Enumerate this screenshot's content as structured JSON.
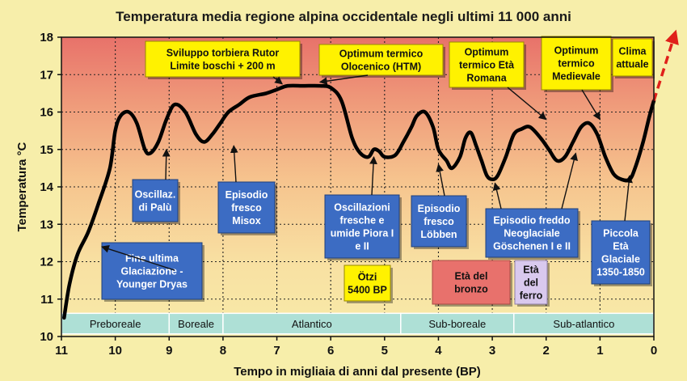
{
  "colors": {
    "background": "#f7eeaa",
    "plot_top": "#e8726a",
    "plot_bottom": "#f8eba8",
    "curve": "#000000",
    "projection": "#e0201a",
    "box_blue": "#3c6cc3",
    "box_yellow": "#fff200",
    "box_bronze": "#e8716c",
    "box_iron": "#d9c9ee",
    "period_band": "#aee0d6"
  },
  "chart_data": {
    "type": "line",
    "title": "Temperatura media regione alpina occidentale negli ultimi 11 000 anni",
    "xlabel": "Tempo in migliaia di anni dal presente (BP)",
    "ylabel": "Temperatura °C",
    "xlim": [
      11,
      0
    ],
    "ylim": [
      10,
      18
    ],
    "x_ticks": [
      11,
      10,
      9,
      8,
      7,
      6,
      5,
      4,
      3,
      2,
      1,
      0
    ],
    "y_ticks": [
      10,
      11,
      12,
      13,
      14,
      15,
      16,
      17,
      18
    ],
    "grid": true,
    "series": [
      {
        "x": [
          10.95,
          10.85,
          10.7,
          10.5,
          10.3,
          10.1,
          10.0,
          9.9,
          9.75,
          9.6,
          9.45,
          9.35,
          9.2,
          9.05,
          8.9,
          8.7,
          8.5,
          8.35,
          8.2,
          8.05,
          7.9,
          7.7,
          7.5,
          7.2,
          7.0,
          6.8,
          6.5,
          6.2,
          6.0,
          5.8,
          5.6,
          5.45,
          5.3,
          5.2,
          5.1,
          5.0,
          4.8,
          4.65,
          4.5,
          4.4,
          4.25,
          4.1,
          4.0,
          3.85,
          3.75,
          3.6,
          3.5,
          3.4,
          3.3,
          3.2,
          3.1,
          3.0,
          2.9,
          2.75,
          2.6,
          2.45,
          2.3,
          2.1,
          1.95,
          1.8,
          1.65,
          1.5,
          1.35,
          1.2,
          1.05,
          0.9,
          0.75,
          0.6,
          0.45,
          0.35,
          0.2,
          0.08,
          0.0
        ],
        "y": [
          10.5,
          11.4,
          12.2,
          12.8,
          13.6,
          14.5,
          15.5,
          15.9,
          16.0,
          15.7,
          15.0,
          14.9,
          15.2,
          15.8,
          16.2,
          16.0,
          15.4,
          15.2,
          15.4,
          15.7,
          16.0,
          16.2,
          16.4,
          16.5,
          16.6,
          16.7,
          16.7,
          16.7,
          16.65,
          16.3,
          15.3,
          14.9,
          14.8,
          15.0,
          14.95,
          14.8,
          14.85,
          15.2,
          15.6,
          15.9,
          16.0,
          15.6,
          15.0,
          14.7,
          14.5,
          14.8,
          15.3,
          15.45,
          15.1,
          14.7,
          14.3,
          14.2,
          14.3,
          14.8,
          15.4,
          15.55,
          15.6,
          15.3,
          15.0,
          14.7,
          14.8,
          15.2,
          15.6,
          15.7,
          15.4,
          14.8,
          14.35,
          14.2,
          14.2,
          14.5,
          15.2,
          15.9,
          16.3
        ]
      }
    ],
    "projection": {
      "x": [
        0.0,
        -0.4
      ],
      "y": [
        16.3,
        18.0
      ]
    },
    "periods": [
      {
        "label": "Preboreale",
        "from": 11,
        "to": 9
      },
      {
        "label": "Boreale",
        "from": 9,
        "to": 8
      },
      {
        "label": "Atlantico",
        "from": 8,
        "to": 4.7
      },
      {
        "label": "Sub-boreale",
        "from": 4.7,
        "to": 2.6
      },
      {
        "label": "Sub-atlantico",
        "from": 2.6,
        "to": 0
      }
    ],
    "annotations": [
      {
        "id": "younger-dryas",
        "lines": [
          "Fine ultima",
          "Glaciazione -",
          "Younger Dryas"
        ],
        "style": "blue",
        "arrow_to": [
          10.25,
          12.4
        ]
      },
      {
        "id": "palu",
        "lines": [
          "Oscillaz.",
          "di Palù"
        ],
        "style": "blue",
        "arrow_to": [
          9.05,
          15.0
        ]
      },
      {
        "id": "misox",
        "lines": [
          "Episodio",
          "fresco",
          "Misox"
        ],
        "style": "blue",
        "arrow_to": [
          7.8,
          15.1
        ]
      },
      {
        "id": "rutor",
        "lines": [
          "Sviluppo torbiera Rutor",
          "Limite boschi + 200 m"
        ],
        "style": "yellow",
        "arrow_to": [
          6.9,
          16.75
        ]
      },
      {
        "id": "htm",
        "lines": [
          "Optimum termico",
          "Olocenico (HTM)"
        ],
        "style": "yellow",
        "arrow_to": [
          6.2,
          16.8
        ]
      },
      {
        "id": "piora",
        "lines": [
          "Oscillazioni",
          "fresche e",
          "umide Piora I",
          "e II"
        ],
        "style": "blue",
        "arrow_to": [
          5.2,
          14.8
        ]
      },
      {
        "id": "otzi",
        "lines": [
          "Ötzi",
          "5400 BP"
        ],
        "style": "yellow"
      },
      {
        "id": "lobben",
        "lines": [
          "Episodio",
          "fresco",
          "Löbben"
        ],
        "style": "blue",
        "arrow_to": [
          4.0,
          14.6
        ]
      },
      {
        "id": "bronzo",
        "lines": [
          "Età del",
          "bronzo"
        ],
        "style": "bronze"
      },
      {
        "id": "ferro",
        "lines": [
          "Età",
          "del",
          "ferro"
        ],
        "style": "iron"
      },
      {
        "id": "romana",
        "lines": [
          "Optimum",
          "termico Età",
          "Romana"
        ],
        "style": "yellow",
        "arrow_to": [
          2.0,
          15.8
        ]
      },
      {
        "id": "goschenen",
        "lines": [
          "Episodio freddo",
          "Neoglaciale",
          "Göschenen I e II"
        ],
        "style": "blue",
        "arrow_to": [
          2.95,
          14.1
        ],
        "arrow_to2": [
          1.45,
          14.9
        ]
      },
      {
        "id": "medievale",
        "lines": [
          "Optimum",
          "termico",
          "Medievale"
        ],
        "style": "yellow",
        "arrow_to": [
          1.0,
          15.8
        ]
      },
      {
        "id": "clima",
        "lines": [
          "Clima",
          "attuale"
        ],
        "style": "yellow"
      },
      {
        "id": "piccola",
        "lines": [
          "Piccola",
          "Età",
          "Glaciale",
          "1350-1850"
        ],
        "style": "blue",
        "arrow_to": [
          0.45,
          14.3
        ]
      }
    ]
  }
}
